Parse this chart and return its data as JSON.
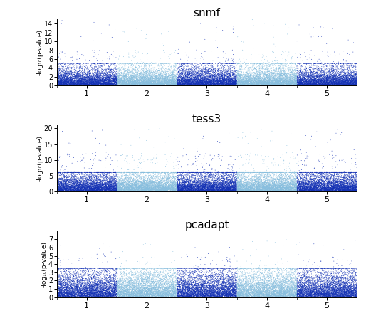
{
  "titles": [
    "snmf",
    "tess3",
    "pcadapt"
  ],
  "ylabel": "-log₁₀(p-value)",
  "xlabel_ticks": [
    "1",
    "2",
    "3",
    "4",
    "5"
  ],
  "n_chromosomes": 5,
  "n_snps_per_chrom": 5000,
  "ylims": [
    15,
    21,
    8
  ],
  "yticks": [
    [
      0,
      2,
      4,
      6,
      8,
      10,
      12,
      14
    ],
    [
      0,
      5,
      10,
      15,
      20
    ],
    [
      0,
      1,
      2,
      3,
      4,
      5,
      6,
      7
    ]
  ],
  "color_dark": "#1432b5",
  "color_light": "#87BEDE",
  "background_color": "#ffffff",
  "figsize": [
    5.14,
    4.54
  ],
  "dpi": 100,
  "seed": 42,
  "panels": [
    {
      "base_mean": 1.2,
      "base_clip": 5.0,
      "spike_prob": 0.004,
      "spike_min": 5.0,
      "spike_max": 15.0,
      "med_prob": 0.012,
      "med_min": 3.5,
      "med_max": 8.0
    },
    {
      "base_mean": 1.8,
      "base_clip": 6.0,
      "spike_prob": 0.005,
      "spike_min": 8.0,
      "spike_max": 20.0,
      "med_prob": 0.015,
      "med_min": 5.0,
      "med_max": 12.0
    },
    {
      "base_mean": 1.0,
      "base_clip": 3.5,
      "spike_prob": 0.002,
      "spike_min": 4.0,
      "spike_max": 7.0,
      "med_prob": 0.008,
      "med_min": 2.5,
      "med_max": 5.0
    }
  ]
}
